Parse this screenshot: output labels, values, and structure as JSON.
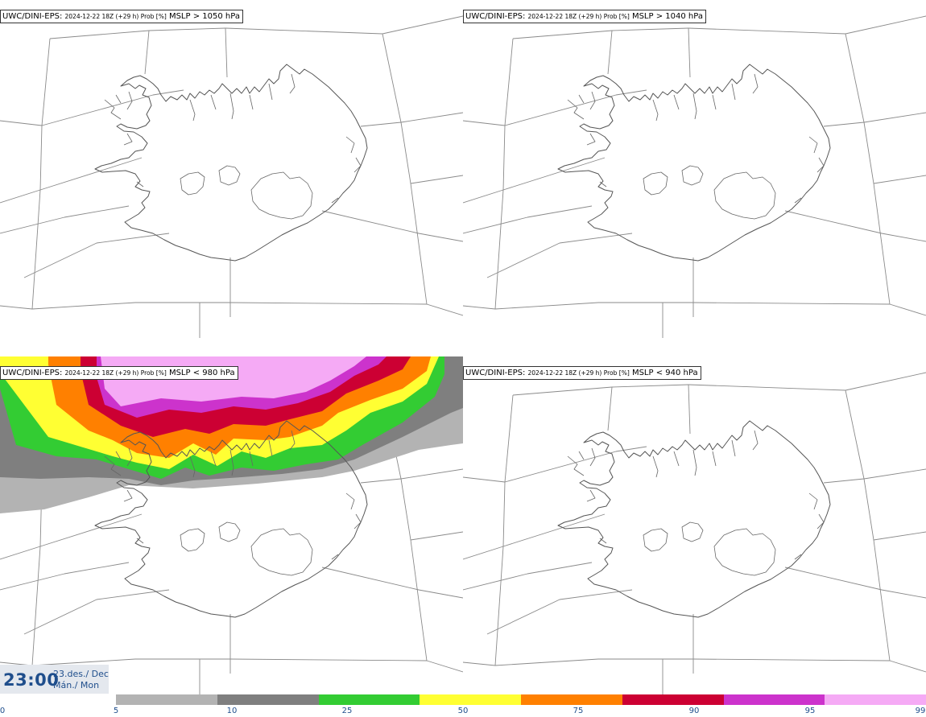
{
  "panels": [
    {
      "model": "UWC/DINI-EPS:",
      "run": "2024-12-22 18Z (+29 h) Prob [%]",
      "param": "MSLP > 1050 hPa",
      "field": "none"
    },
    {
      "model": "UWC/DINI-EPS:",
      "run": "2024-12-22 18Z (+29 h) Prob [%]",
      "param": "MSLP > 1040 hPa",
      "field": "none"
    },
    {
      "model": "UWC/DINI-EPS:",
      "run": "2024-12-22 18Z (+29 h) Prob [%]",
      "param": "MSLP < 980 hPa",
      "field": "north_low_pressure"
    },
    {
      "model": "UWC/DINI-EPS:",
      "run": "2024-12-22 18Z (+29 h) Prob [%]",
      "param": "MSLP < 940 hPa",
      "field": "none"
    }
  ],
  "time": {
    "time": "23:00",
    "date_line1": "23.des./ Dec",
    "date_line2": "Mán./ Mon"
  },
  "legend": {
    "ticks": [
      "0",
      "5",
      "10",
      "25",
      "50",
      "75",
      "90",
      "95",
      "99"
    ],
    "colors": [
      "#b3b3b3",
      "#7f7f7f",
      "#33cc33",
      "#ffff33",
      "#ff8000",
      "#cc0033",
      "#cc33cc",
      "#f5aaf5"
    ]
  }
}
